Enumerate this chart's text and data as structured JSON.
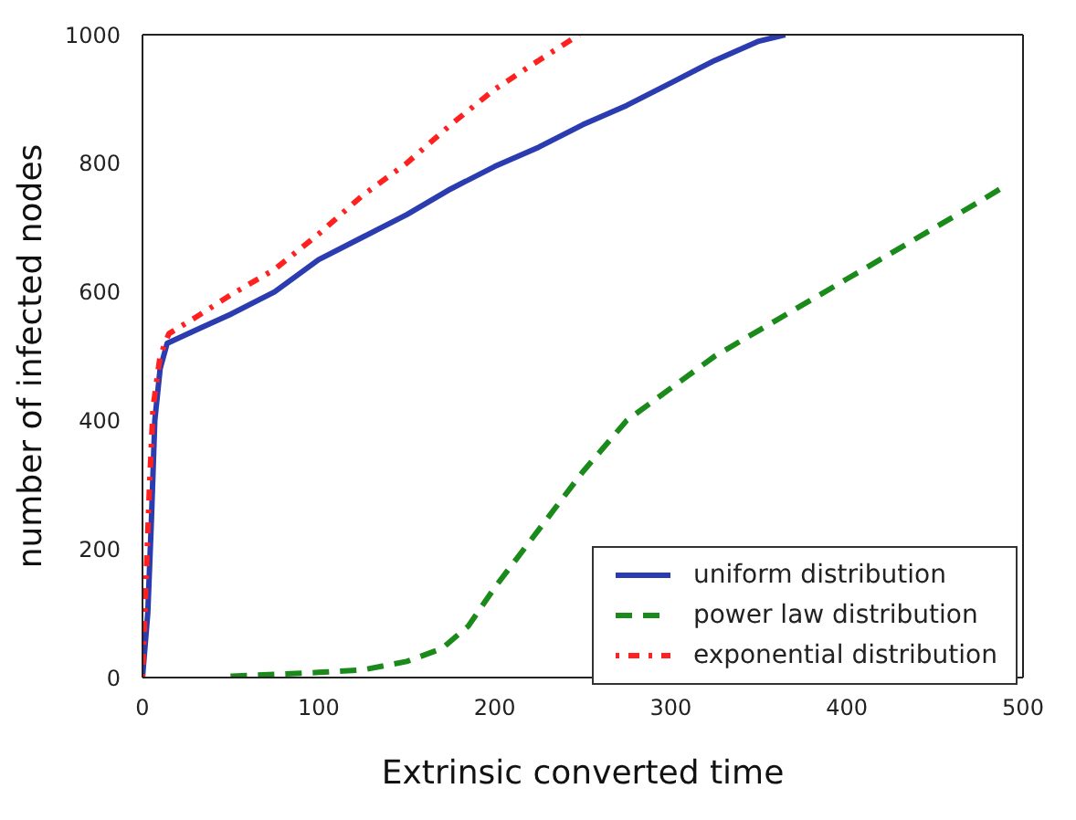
{
  "chart_data": {
    "type": "line",
    "xlabel": "Extrinsic converted time",
    "ylabel": "number of infected nodes",
    "xlim": [
      0,
      500
    ],
    "xticks": [
      0,
      100,
      200,
      300,
      400,
      500
    ],
    "ylim": [
      0,
      1000
    ],
    "yticks": [
      0,
      200,
      400,
      600,
      800,
      1000
    ],
    "grid": false,
    "legend": "bottom right",
    "marker": "none",
    "series": [
      {
        "name": "uniform distribution",
        "color": "#2b3cb0",
        "line_style": "solid",
        "x": [
          0,
          3,
          5,
          7,
          10,
          14,
          30,
          50,
          75,
          100,
          125,
          150,
          175,
          200,
          225,
          250,
          275,
          300,
          325,
          350,
          365
        ],
        "values": [
          0,
          100,
          240,
          400,
          480,
          520,
          540,
          565,
          600,
          650,
          685,
          720,
          760,
          795,
          825,
          860,
          890,
          925,
          960,
          990,
          1000
        ]
      },
      {
        "name": "power law distribution",
        "color": "#1a8a1a",
        "line_style": "dashed",
        "x": [
          50,
          75,
          100,
          125,
          150,
          170,
          185,
          200,
          225,
          250,
          275,
          300,
          325,
          350,
          375,
          400,
          425,
          450,
          475,
          490
        ],
        "values": [
          2,
          5,
          8,
          12,
          25,
          45,
          80,
          140,
          230,
          320,
          400,
          450,
          500,
          540,
          580,
          620,
          660,
          700,
          740,
          765
        ]
      },
      {
        "name": "exponential distribution",
        "color": "#ff2020",
        "line_style": "dotted",
        "x": [
          0,
          2,
          4,
          6,
          10,
          15,
          30,
          50,
          75,
          100,
          125,
          150,
          175,
          200,
          225,
          248
        ],
        "values": [
          0,
          150,
          300,
          420,
          500,
          535,
          560,
          595,
          635,
          690,
          750,
          800,
          860,
          915,
          960,
          1000
        ]
      }
    ]
  }
}
